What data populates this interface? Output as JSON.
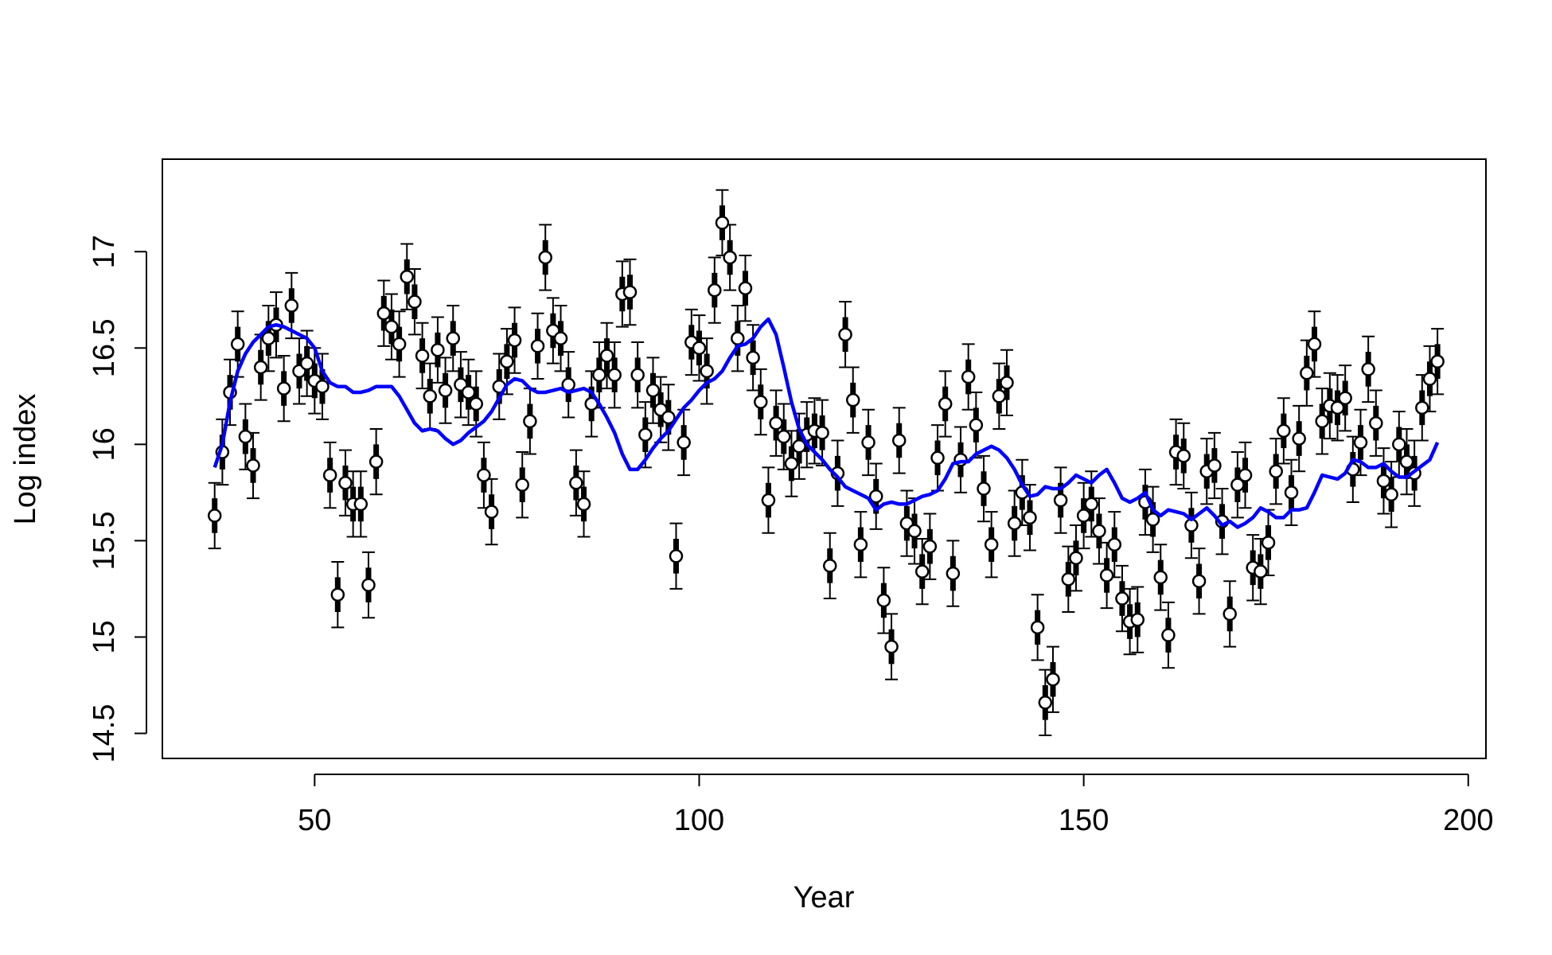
{
  "chart_data": {
    "type": "errorbar-line",
    "x_label": "Year",
    "y_label": "Log index",
    "xlim": [
      30.2,
      202.3
    ],
    "ylim": [
      14.37,
      17.48
    ],
    "xticks": [
      50,
      100,
      150,
      200
    ],
    "yticks": [
      14.5,
      15.0,
      15.5,
      16.0,
      16.5,
      17.0
    ],
    "x": [
      37,
      38,
      39,
      40,
      41,
      42,
      43,
      44,
      45,
      46,
      47,
      48,
      49,
      50,
      51,
      52,
      53,
      54,
      55,
      56,
      57,
      58,
      59,
      60,
      61,
      62,
      63,
      64,
      65,
      66,
      67,
      68,
      69,
      70,
      71,
      72,
      73,
      74,
      75,
      76,
      77,
      78,
      79,
      80,
      81,
      82,
      83,
      84,
      85,
      86,
      87,
      88,
      89,
      90,
      91,
      92,
      93,
      94,
      95,
      96,
      97,
      98,
      99,
      100,
      101,
      102,
      103,
      104,
      105,
      106,
      107,
      108,
      109,
      110,
      111,
      112,
      113,
      114,
      115,
      116,
      117,
      118,
      119,
      120,
      121,
      122,
      123,
      124,
      125,
      126,
      127,
      128,
      129,
      130,
      131,
      132,
      133,
      134,
      135,
      136,
      137,
      138,
      139,
      140,
      141,
      142,
      143,
      144,
      145,
      146,
      147,
      148,
      149,
      150,
      151,
      152,
      153,
      154,
      155,
      156,
      157,
      158,
      159,
      160,
      161,
      162,
      163,
      164,
      165,
      166,
      167,
      168,
      169,
      170,
      171,
      172,
      173,
      174,
      175,
      176,
      177,
      178,
      179,
      180,
      181,
      182,
      183,
      184,
      185,
      186,
      187,
      188,
      189,
      190,
      191,
      192,
      193,
      194,
      195,
      196
    ],
    "series": [
      {
        "kind": "points",
        "color": "#000000",
        "error_outer": 0.17,
        "error_inner": 0.09,
        "values": [
          15.63,
          15.96,
          16.27,
          16.52,
          16.04,
          15.89,
          16.4,
          16.55,
          16.62,
          16.29,
          16.72,
          16.38,
          16.42,
          16.33,
          16.3,
          15.84,
          15.22,
          15.8,
          15.69,
          15.69,
          15.27,
          15.91,
          16.68,
          16.61,
          16.52,
          16.87,
          16.74,
          16.46,
          16.25,
          16.49,
          16.28,
          16.55,
          16.31,
          16.27,
          16.21,
          15.84,
          15.65,
          16.3,
          16.43,
          16.54,
          15.79,
          16.12,
          16.51,
          16.97,
          16.59,
          16.55,
          16.31,
          15.8,
          15.69,
          16.21,
          16.36,
          16.46,
          16.36,
          16.78,
          16.79,
          16.36,
          16.05,
          16.28,
          16.18,
          16.14,
          15.42,
          16.01,
          16.53,
          16.5,
          16.38,
          16.8,
          17.15,
          16.97,
          16.55,
          16.81,
          16.45,
          16.22,
          15.71,
          16.11,
          16.04,
          15.9,
          15.99,
          16.05,
          16.07,
          16.06,
          15.37,
          15.85,
          16.57,
          16.23,
          15.48,
          16.01,
          15.73,
          15.19,
          14.95,
          16.02,
          15.59,
          15.55,
          15.34,
          15.47,
          15.93,
          16.21,
          15.33,
          15.92,
          16.35,
          16.1,
          15.77,
          15.48,
          16.25,
          16.32,
          15.59,
          15.75,
          15.62,
          15.05,
          14.66,
          14.78,
          15.71,
          15.3,
          15.41,
          15.63,
          15.69,
          15.55,
          15.32,
          15.48,
          15.2,
          15.08,
          15.09,
          15.7,
          15.61,
          15.31,
          15.01,
          15.96,
          15.94,
          15.58,
          15.29,
          15.86,
          15.89,
          15.6,
          15.12,
          15.79,
          15.84,
          15.36,
          15.34,
          15.49,
          15.86,
          16.07,
          15.75,
          16.03,
          16.37,
          16.52,
          16.12,
          16.2,
          16.19,
          16.24,
          15.87,
          16.01,
          16.39,
          16.11,
          15.81,
          15.74,
          16.0,
          15.91,
          15.85,
          16.19,
          16.34,
          16.43
        ]
      },
      {
        "kind": "line",
        "color": "#0000ff",
        "values": [
          15.88,
          16.0,
          16.22,
          16.38,
          16.47,
          16.53,
          16.57,
          16.61,
          16.62,
          16.61,
          16.59,
          16.57,
          16.55,
          16.5,
          16.38,
          16.32,
          16.3,
          16.3,
          16.27,
          16.27,
          16.28,
          16.3,
          16.3,
          16.3,
          16.25,
          16.18,
          16.11,
          16.07,
          16.08,
          16.07,
          16.03,
          16.0,
          16.02,
          16.06,
          16.09,
          16.12,
          16.17,
          16.24,
          16.31,
          16.34,
          16.33,
          16.29,
          16.27,
          16.27,
          16.28,
          16.29,
          16.27,
          16.28,
          16.29,
          16.27,
          16.21,
          16.14,
          16.06,
          15.95,
          15.87,
          15.87,
          15.92,
          15.98,
          16.03,
          16.07,
          16.13,
          16.19,
          16.23,
          16.28,
          16.32,
          16.34,
          16.38,
          16.45,
          16.51,
          16.52,
          16.55,
          16.61,
          16.65,
          16.57,
          16.4,
          16.22,
          16.08,
          16.0,
          15.96,
          15.92,
          15.87,
          15.83,
          15.78,
          15.76,
          15.74,
          15.72,
          15.66,
          15.69,
          15.7,
          15.69,
          15.69,
          15.71,
          15.73,
          15.74,
          15.76,
          15.82,
          15.9,
          15.91,
          15.91,
          15.95,
          15.97,
          15.99,
          15.97,
          15.93,
          15.87,
          15.79,
          15.73,
          15.74,
          15.78,
          15.77,
          15.77,
          15.8,
          15.84,
          15.82,
          15.8,
          15.84,
          15.87,
          15.8,
          15.72,
          15.7,
          15.72,
          15.75,
          15.66,
          15.63,
          15.66,
          15.65,
          15.64,
          15.61,
          15.64,
          15.67,
          15.63,
          15.58,
          15.6,
          15.57,
          15.59,
          15.62,
          15.67,
          15.65,
          15.62,
          15.62,
          15.66,
          15.66,
          15.67,
          15.75,
          15.84,
          15.83,
          15.82,
          15.85,
          15.92,
          15.91,
          15.88,
          15.88,
          15.9,
          15.86,
          15.83,
          15.83,
          15.86,
          15.89,
          15.92,
          16.01
        ]
      }
    ]
  }
}
